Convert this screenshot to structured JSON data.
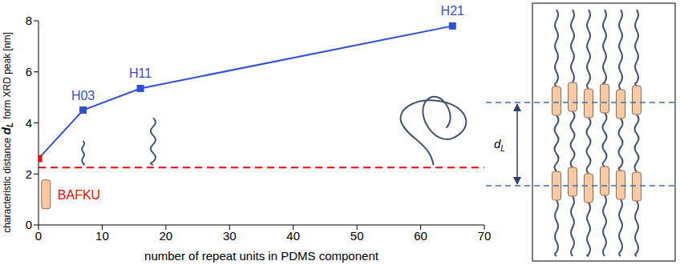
{
  "chart_data": {
    "type": "line",
    "x": [
      0,
      7,
      16,
      65
    ],
    "values": [
      2.6,
      4.5,
      5.35,
      7.8
    ],
    "color": "#2f4fd8",
    "colors": [
      "#ff0000",
      "#2f4fd8",
      "#2f4fd8",
      "#2f4fd8"
    ],
    "marker": "square",
    "point_labels": [
      null,
      "H03",
      "H11",
      "H21"
    ],
    "x_label": "number of repeat units in PDMS component",
    "y_label": {
      "before": "characteristic distance",
      "symbol": "d",
      "subscript": "L",
      "after": "form XRD peak [nm]"
    },
    "xlim": [
      0,
      70
    ],
    "xticks": [
      0,
      10,
      20,
      30,
      40,
      50,
      60,
      70
    ],
    "ylim": [
      0,
      8
    ],
    "yticks": [
      0,
      2,
      4,
      6,
      8
    ],
    "reference_line": {
      "y": 2.25,
      "color": "#ff0000",
      "line_style": "dashed"
    },
    "annotations": [
      {
        "text": "BAFKU",
        "x": 3,
        "y": 1.2,
        "color": "#ff0000"
      }
    ],
    "grid": false
  },
  "diagram": {
    "label": {
      "symbol": "d",
      "subscript": "L"
    }
  }
}
